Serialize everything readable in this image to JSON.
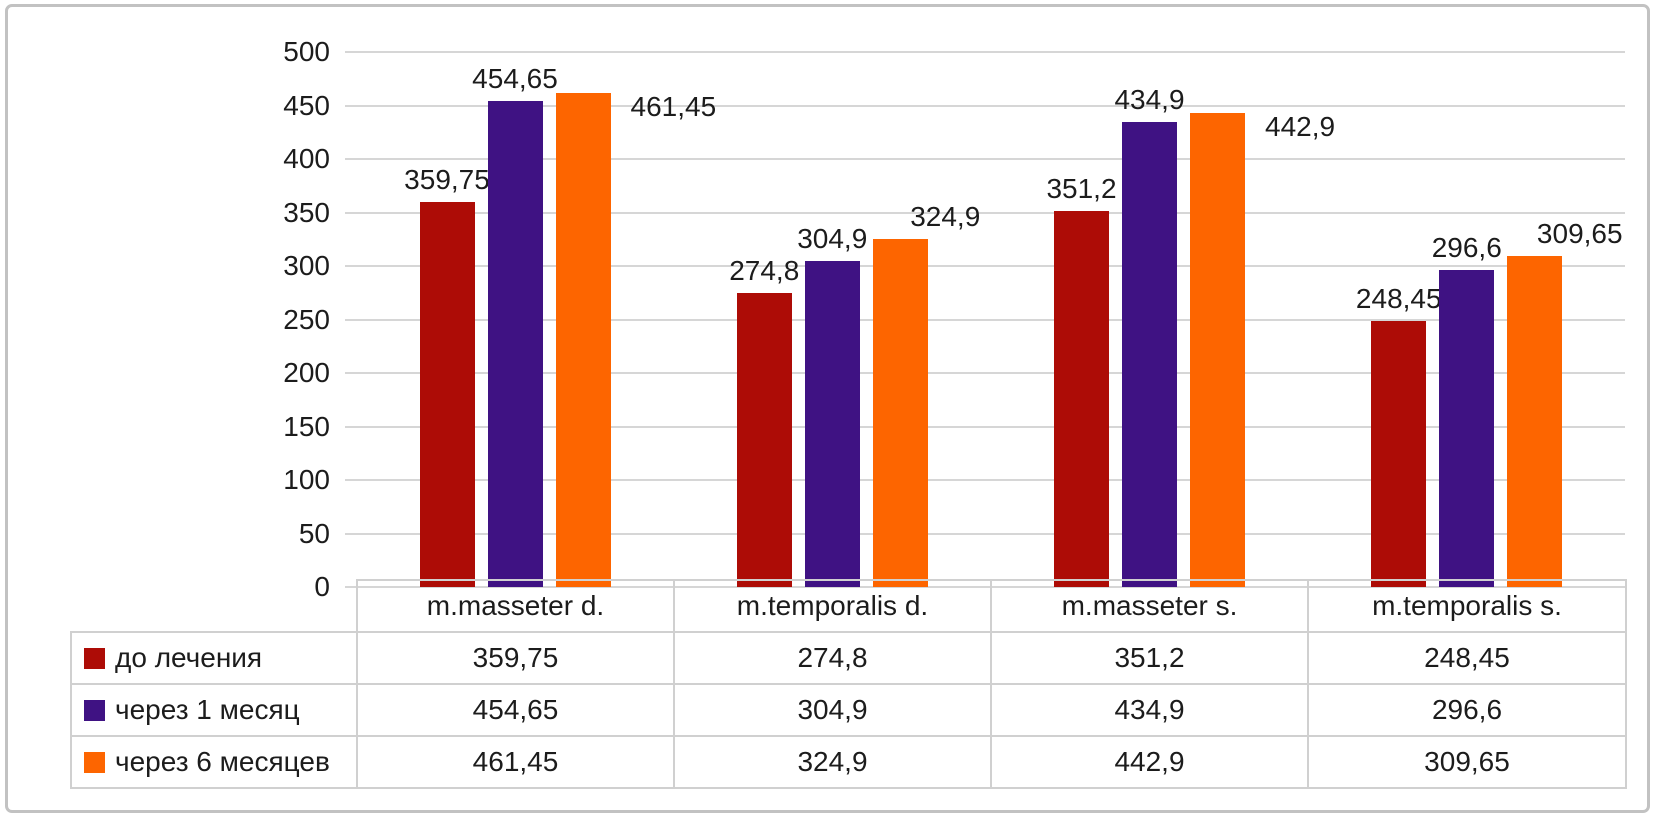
{
  "chart_data": {
    "type": "bar",
    "title": "",
    "xlabel": "",
    "ylabel": "",
    "categories": [
      "m.masseter d.",
      "m.temporalis d.",
      "m.masseter s.",
      "m.temporalis s."
    ],
    "series": [
      {
        "name": "до лечения",
        "color": "#AD0C06",
        "values": [
          359.75,
          274.8,
          351.2,
          248.45
        ],
        "labels": [
          "359,75",
          "274,8",
          "351,2",
          "248,45"
        ]
      },
      {
        "name": "через 1 месяц",
        "color": "#3F1283",
        "values": [
          454.65,
          304.9,
          434.9,
          296.6
        ],
        "labels": [
          "454,65",
          "304,9",
          "434,9",
          "296,6"
        ]
      },
      {
        "name": "через 6 месяцев",
        "color": "#FD6500",
        "values": [
          461.45,
          324.9,
          442.9,
          309.65
        ],
        "labels": [
          "461,45",
          "324,9",
          "442,9",
          "309,65"
        ]
      }
    ],
    "ylim": [
      0,
      500
    ],
    "y_ticks": [
      "0",
      "50",
      "100",
      "150",
      "200",
      "250",
      "300",
      "350",
      "400",
      "450",
      "500"
    ],
    "grid": true,
    "legend_position": "table-left",
    "table_legend": true
  },
  "colors": {
    "gridline": "#D6D6D6",
    "table_border": "#D0D0D0",
    "frame_border": "#C2C2C2",
    "text": "#1C1C1C",
    "background": "#FFFFFF"
  }
}
